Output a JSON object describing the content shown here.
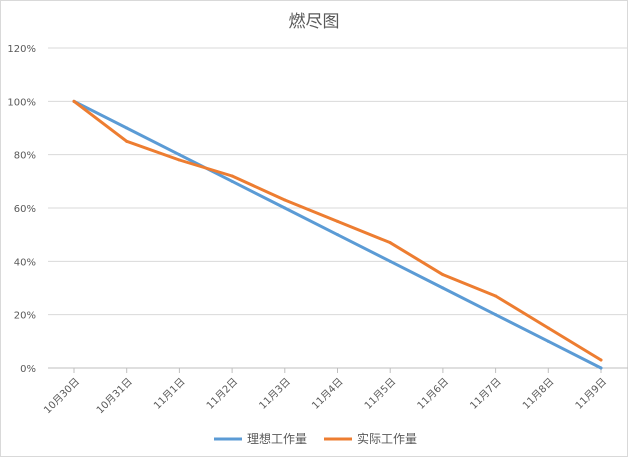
{
  "chart_data": {
    "type": "line",
    "title": "燃尽图",
    "xlabel": "",
    "ylabel": "",
    "categories": [
      "10月30日",
      "10月31日",
      "11月1日",
      "11月2日",
      "11月3日",
      "11月4日",
      "11月5日",
      "11月6日",
      "11月7日",
      "11月8日",
      "11月9日"
    ],
    "y_ticks": [
      "0%",
      "20%",
      "40%",
      "60%",
      "80%",
      "100%",
      "120%"
    ],
    "ylim": [
      0,
      120
    ],
    "grid": true,
    "legend_position": "bottom",
    "series": [
      {
        "name": "理想工作量",
        "color": "#5b9bd5",
        "values": [
          100,
          90,
          80,
          70,
          60,
          50,
          40,
          30,
          20,
          10,
          0
        ]
      },
      {
        "name": "实际工作量",
        "color": "#ed7d31",
        "values": [
          100,
          85,
          78,
          72,
          63,
          55,
          47,
          35,
          27,
          15,
          3
        ]
      }
    ]
  }
}
